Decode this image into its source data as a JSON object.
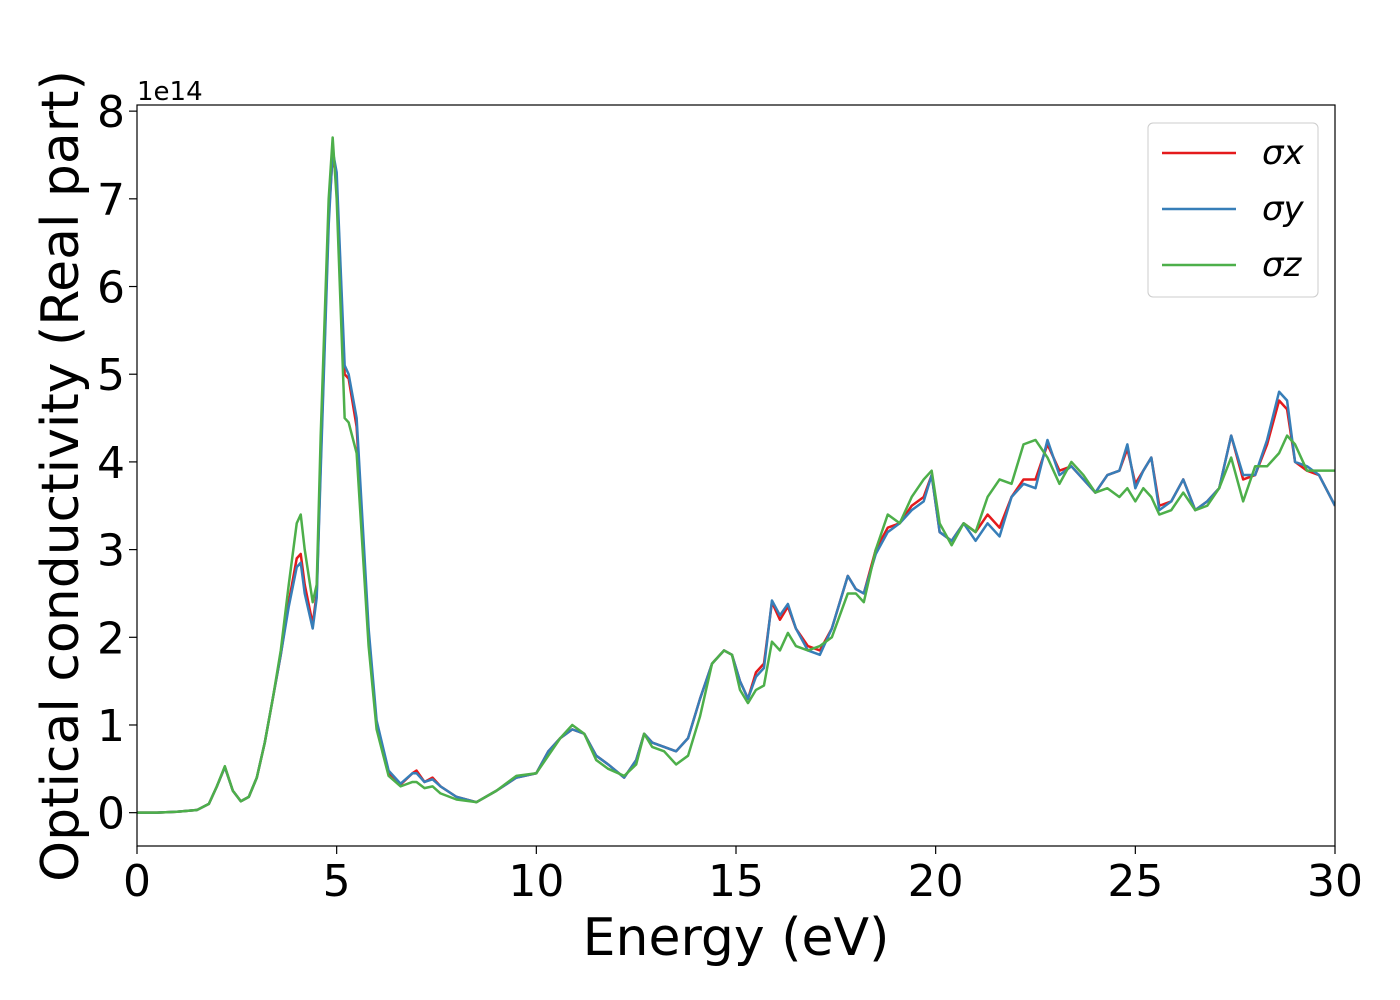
{
  "chart_data": {
    "type": "line",
    "xlabel": "Energy (eV)",
    "ylabel": "Optical conductivity (Real part)",
    "y_offset_label": "1e14",
    "xlim": [
      0,
      30
    ],
    "ylim": [
      -0.38,
      8.07
    ],
    "xticks": [
      0,
      5,
      10,
      15,
      20,
      25,
      30
    ],
    "yticks": [
      0,
      1,
      2,
      3,
      4,
      5,
      6,
      7,
      8
    ],
    "grid": false,
    "legend": "upper right",
    "x": [
      0,
      0.5,
      1,
      1.5,
      1.8,
      2.0,
      2.2,
      2.4,
      2.6,
      2.8,
      3.0,
      3.2,
      3.4,
      3.6,
      3.8,
      4.0,
      4.1,
      4.2,
      4.4,
      4.5,
      4.6,
      4.8,
      4.9,
      5.0,
      5.2,
      5.3,
      5.5,
      5.8,
      6.0,
      6.3,
      6.6,
      6.9,
      7.0,
      7.2,
      7.4,
      7.6,
      8.0,
      8.5,
      9.0,
      9.5,
      10.0,
      10.3,
      10.6,
      10.9,
      11.2,
      11.5,
      11.8,
      12.2,
      12.5,
      12.7,
      12.9,
      13.2,
      13.5,
      13.8,
      14.1,
      14.4,
      14.7,
      14.9,
      15.1,
      15.3,
      15.5,
      15.7,
      15.9,
      16.1,
      16.3,
      16.5,
      16.8,
      17.1,
      17.4,
      17.8,
      18.0,
      18.2,
      18.5,
      18.8,
      19.1,
      19.4,
      19.7,
      19.9,
      20.1,
      20.4,
      20.7,
      21.0,
      21.3,
      21.6,
      21.9,
      22.2,
      22.5,
      22.8,
      23.1,
      23.4,
      23.7,
      24.0,
      24.3,
      24.6,
      24.8,
      25.0,
      25.2,
      25.4,
      25.6,
      25.9,
      26.2,
      26.5,
      26.8,
      27.1,
      27.4,
      27.7,
      28.0,
      28.3,
      28.6,
      28.8,
      29.0,
      29.3,
      29.6,
      30.0
    ],
    "series": [
      {
        "name": "σx",
        "color": "#e41a1c",
        "values": [
          0,
          0,
          0.01,
          0.03,
          0.1,
          0.3,
          0.52,
          0.25,
          0.13,
          0.18,
          0.4,
          0.8,
          1.3,
          1.8,
          2.4,
          2.9,
          2.95,
          2.6,
          2.15,
          2.5,
          4.0,
          6.8,
          7.5,
          7.2,
          5.0,
          4.95,
          4.4,
          2.0,
          1.0,
          0.45,
          0.32,
          0.45,
          0.48,
          0.35,
          0.4,
          0.3,
          0.18,
          0.12,
          0.25,
          0.4,
          0.45,
          0.7,
          0.85,
          0.95,
          0.9,
          0.65,
          0.55,
          0.4,
          0.6,
          0.9,
          0.8,
          0.75,
          0.7,
          0.85,
          1.3,
          1.7,
          1.85,
          1.8,
          1.5,
          1.3,
          1.6,
          1.7,
          2.4,
          2.2,
          2.35,
          2.1,
          1.9,
          1.85,
          2.1,
          2.7,
          2.55,
          2.5,
          3.0,
          3.25,
          3.3,
          3.5,
          3.6,
          3.85,
          3.2,
          3.1,
          3.3,
          3.2,
          3.4,
          3.25,
          3.6,
          3.8,
          3.8,
          4.2,
          3.9,
          3.95,
          3.8,
          3.65,
          3.85,
          3.9,
          4.15,
          3.75,
          3.9,
          4.05,
          3.5,
          3.55,
          3.8,
          3.45,
          3.55,
          3.7,
          4.3,
          3.8,
          3.85,
          4.2,
          4.7,
          4.6,
          4.0,
          3.9,
          3.85,
          3.5
        ]
      },
      {
        "name": "σy",
        "color": "#377eb8",
        "values": [
          0,
          0,
          0.01,
          0.03,
          0.1,
          0.3,
          0.52,
          0.25,
          0.13,
          0.18,
          0.4,
          0.8,
          1.3,
          1.8,
          2.35,
          2.8,
          2.85,
          2.5,
          2.1,
          2.45,
          3.9,
          6.7,
          7.55,
          7.3,
          5.1,
          5.0,
          4.5,
          2.1,
          1.05,
          0.48,
          0.33,
          0.45,
          0.45,
          0.35,
          0.38,
          0.3,
          0.18,
          0.12,
          0.25,
          0.4,
          0.45,
          0.7,
          0.85,
          0.95,
          0.9,
          0.65,
          0.55,
          0.4,
          0.6,
          0.9,
          0.8,
          0.75,
          0.7,
          0.85,
          1.3,
          1.7,
          1.85,
          1.8,
          1.5,
          1.3,
          1.55,
          1.65,
          2.42,
          2.25,
          2.38,
          2.1,
          1.85,
          1.8,
          2.1,
          2.7,
          2.55,
          2.5,
          2.95,
          3.2,
          3.3,
          3.45,
          3.55,
          3.85,
          3.2,
          3.1,
          3.3,
          3.1,
          3.3,
          3.15,
          3.6,
          3.75,
          3.7,
          4.25,
          3.85,
          3.95,
          3.8,
          3.65,
          3.85,
          3.9,
          4.2,
          3.7,
          3.9,
          4.05,
          3.45,
          3.55,
          3.8,
          3.45,
          3.55,
          3.7,
          4.3,
          3.85,
          3.85,
          4.25,
          4.8,
          4.7,
          4.0,
          3.95,
          3.85,
          3.5
        ]
      },
      {
        "name": "σz",
        "color": "#4daf4a",
        "values": [
          0,
          0,
          0.01,
          0.03,
          0.1,
          0.3,
          0.53,
          0.25,
          0.13,
          0.18,
          0.4,
          0.8,
          1.3,
          1.85,
          2.6,
          3.3,
          3.4,
          3.0,
          2.4,
          2.6,
          4.3,
          7.0,
          7.7,
          7.0,
          4.5,
          4.45,
          4.1,
          1.9,
          0.95,
          0.42,
          0.3,
          0.35,
          0.35,
          0.28,
          0.3,
          0.22,
          0.15,
          0.12,
          0.25,
          0.42,
          0.45,
          0.65,
          0.85,
          1.0,
          0.9,
          0.6,
          0.5,
          0.42,
          0.55,
          0.9,
          0.75,
          0.7,
          0.55,
          0.65,
          1.1,
          1.7,
          1.85,
          1.8,
          1.4,
          1.25,
          1.4,
          1.45,
          1.95,
          1.85,
          2.05,
          1.9,
          1.85,
          1.9,
          2.0,
          2.5,
          2.5,
          2.4,
          3.0,
          3.4,
          3.3,
          3.6,
          3.8,
          3.9,
          3.3,
          3.05,
          3.3,
          3.2,
          3.6,
          3.8,
          3.75,
          4.2,
          4.25,
          4.05,
          3.75,
          4.0,
          3.85,
          3.65,
          3.7,
          3.6,
          3.7,
          3.55,
          3.7,
          3.6,
          3.4,
          3.45,
          3.65,
          3.45,
          3.5,
          3.7,
          4.05,
          3.55,
          3.95,
          3.95,
          4.1,
          4.3,
          4.2,
          3.9,
          3.9,
          3.9
        ]
      }
    ]
  }
}
